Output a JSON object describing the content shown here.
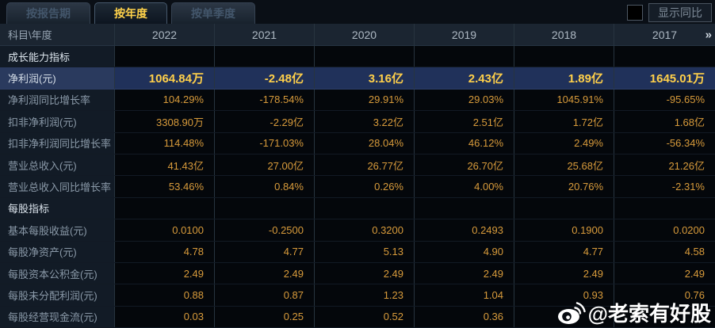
{
  "tabs": [
    {
      "label": "按报告期",
      "active": false
    },
    {
      "label": "按年度",
      "active": true
    },
    {
      "label": "按单季度",
      "active": false
    }
  ],
  "controls": {
    "show_yoy_label": "显示同比",
    "checkbox_checked": false
  },
  "table": {
    "corner_label": "科目\\年度",
    "years": [
      "2022",
      "2021",
      "2020",
      "2019",
      "2018",
      "2017"
    ],
    "more_icon": "»",
    "rows": [
      {
        "type": "section",
        "label": "成长能力指标",
        "highlight": false,
        "values": [
          "",
          "",
          "",
          "",
          "",
          ""
        ]
      },
      {
        "type": "data",
        "label": "净利润(元)",
        "highlight": true,
        "values": [
          "1064.84万",
          "-2.48亿",
          "3.16亿",
          "2.43亿",
          "1.89亿",
          "1645.01万"
        ]
      },
      {
        "type": "data",
        "label": "净利润同比增长率",
        "highlight": false,
        "values": [
          "104.29%",
          "-178.54%",
          "29.91%",
          "29.03%",
          "1045.91%",
          "-95.65%"
        ]
      },
      {
        "type": "data",
        "label": "扣非净利润(元)",
        "highlight": false,
        "values": [
          "3308.90万",
          "-2.29亿",
          "3.22亿",
          "2.51亿",
          "1.72亿",
          "1.68亿"
        ]
      },
      {
        "type": "data",
        "label": "扣非净利润同比增长率",
        "highlight": false,
        "values": [
          "114.48%",
          "-171.03%",
          "28.04%",
          "46.12%",
          "2.49%",
          "-56.34%"
        ]
      },
      {
        "type": "data",
        "label": "营业总收入(元)",
        "highlight": false,
        "values": [
          "41.43亿",
          "27.00亿",
          "26.77亿",
          "26.70亿",
          "25.68亿",
          "21.26亿"
        ]
      },
      {
        "type": "data",
        "label": "营业总收入同比增长率",
        "highlight": false,
        "values": [
          "53.46%",
          "0.84%",
          "0.26%",
          "4.00%",
          "20.76%",
          "-2.31%"
        ]
      },
      {
        "type": "section",
        "label": "每股指标",
        "highlight": false,
        "values": [
          "",
          "",
          "",
          "",
          "",
          ""
        ]
      },
      {
        "type": "data",
        "label": "基本每股收益(元)",
        "highlight": false,
        "values": [
          "0.0100",
          "-0.2500",
          "0.3200",
          "0.2493",
          "0.1900",
          "0.0200"
        ]
      },
      {
        "type": "data",
        "label": "每股净资产(元)",
        "highlight": false,
        "values": [
          "4.78",
          "4.77",
          "5.13",
          "4.90",
          "4.77",
          "4.58"
        ]
      },
      {
        "type": "data",
        "label": "每股资本公积金(元)",
        "highlight": false,
        "values": [
          "2.49",
          "2.49",
          "2.49",
          "2.49",
          "2.49",
          "2.49"
        ]
      },
      {
        "type": "data",
        "label": "每股未分配利润(元)",
        "highlight": false,
        "values": [
          "0.88",
          "0.87",
          "1.23",
          "1.04",
          "0.93",
          "0.76"
        ]
      },
      {
        "type": "data",
        "label": "每股经营现金流(元)",
        "highlight": false,
        "values": [
          "0.03",
          "0.25",
          "0.52",
          "0.36",
          "",
          ""
        ]
      }
    ]
  },
  "watermark": {
    "text": "@老索有好股"
  },
  "colors": {
    "accent_yellow": "#ffd24a",
    "value_orange": "#d89b3b",
    "highlight_row_bg": "#20315a",
    "header_bg": "#1b2531",
    "label_col_bg": "#121b26",
    "value_cell_bg": "#04070b"
  }
}
